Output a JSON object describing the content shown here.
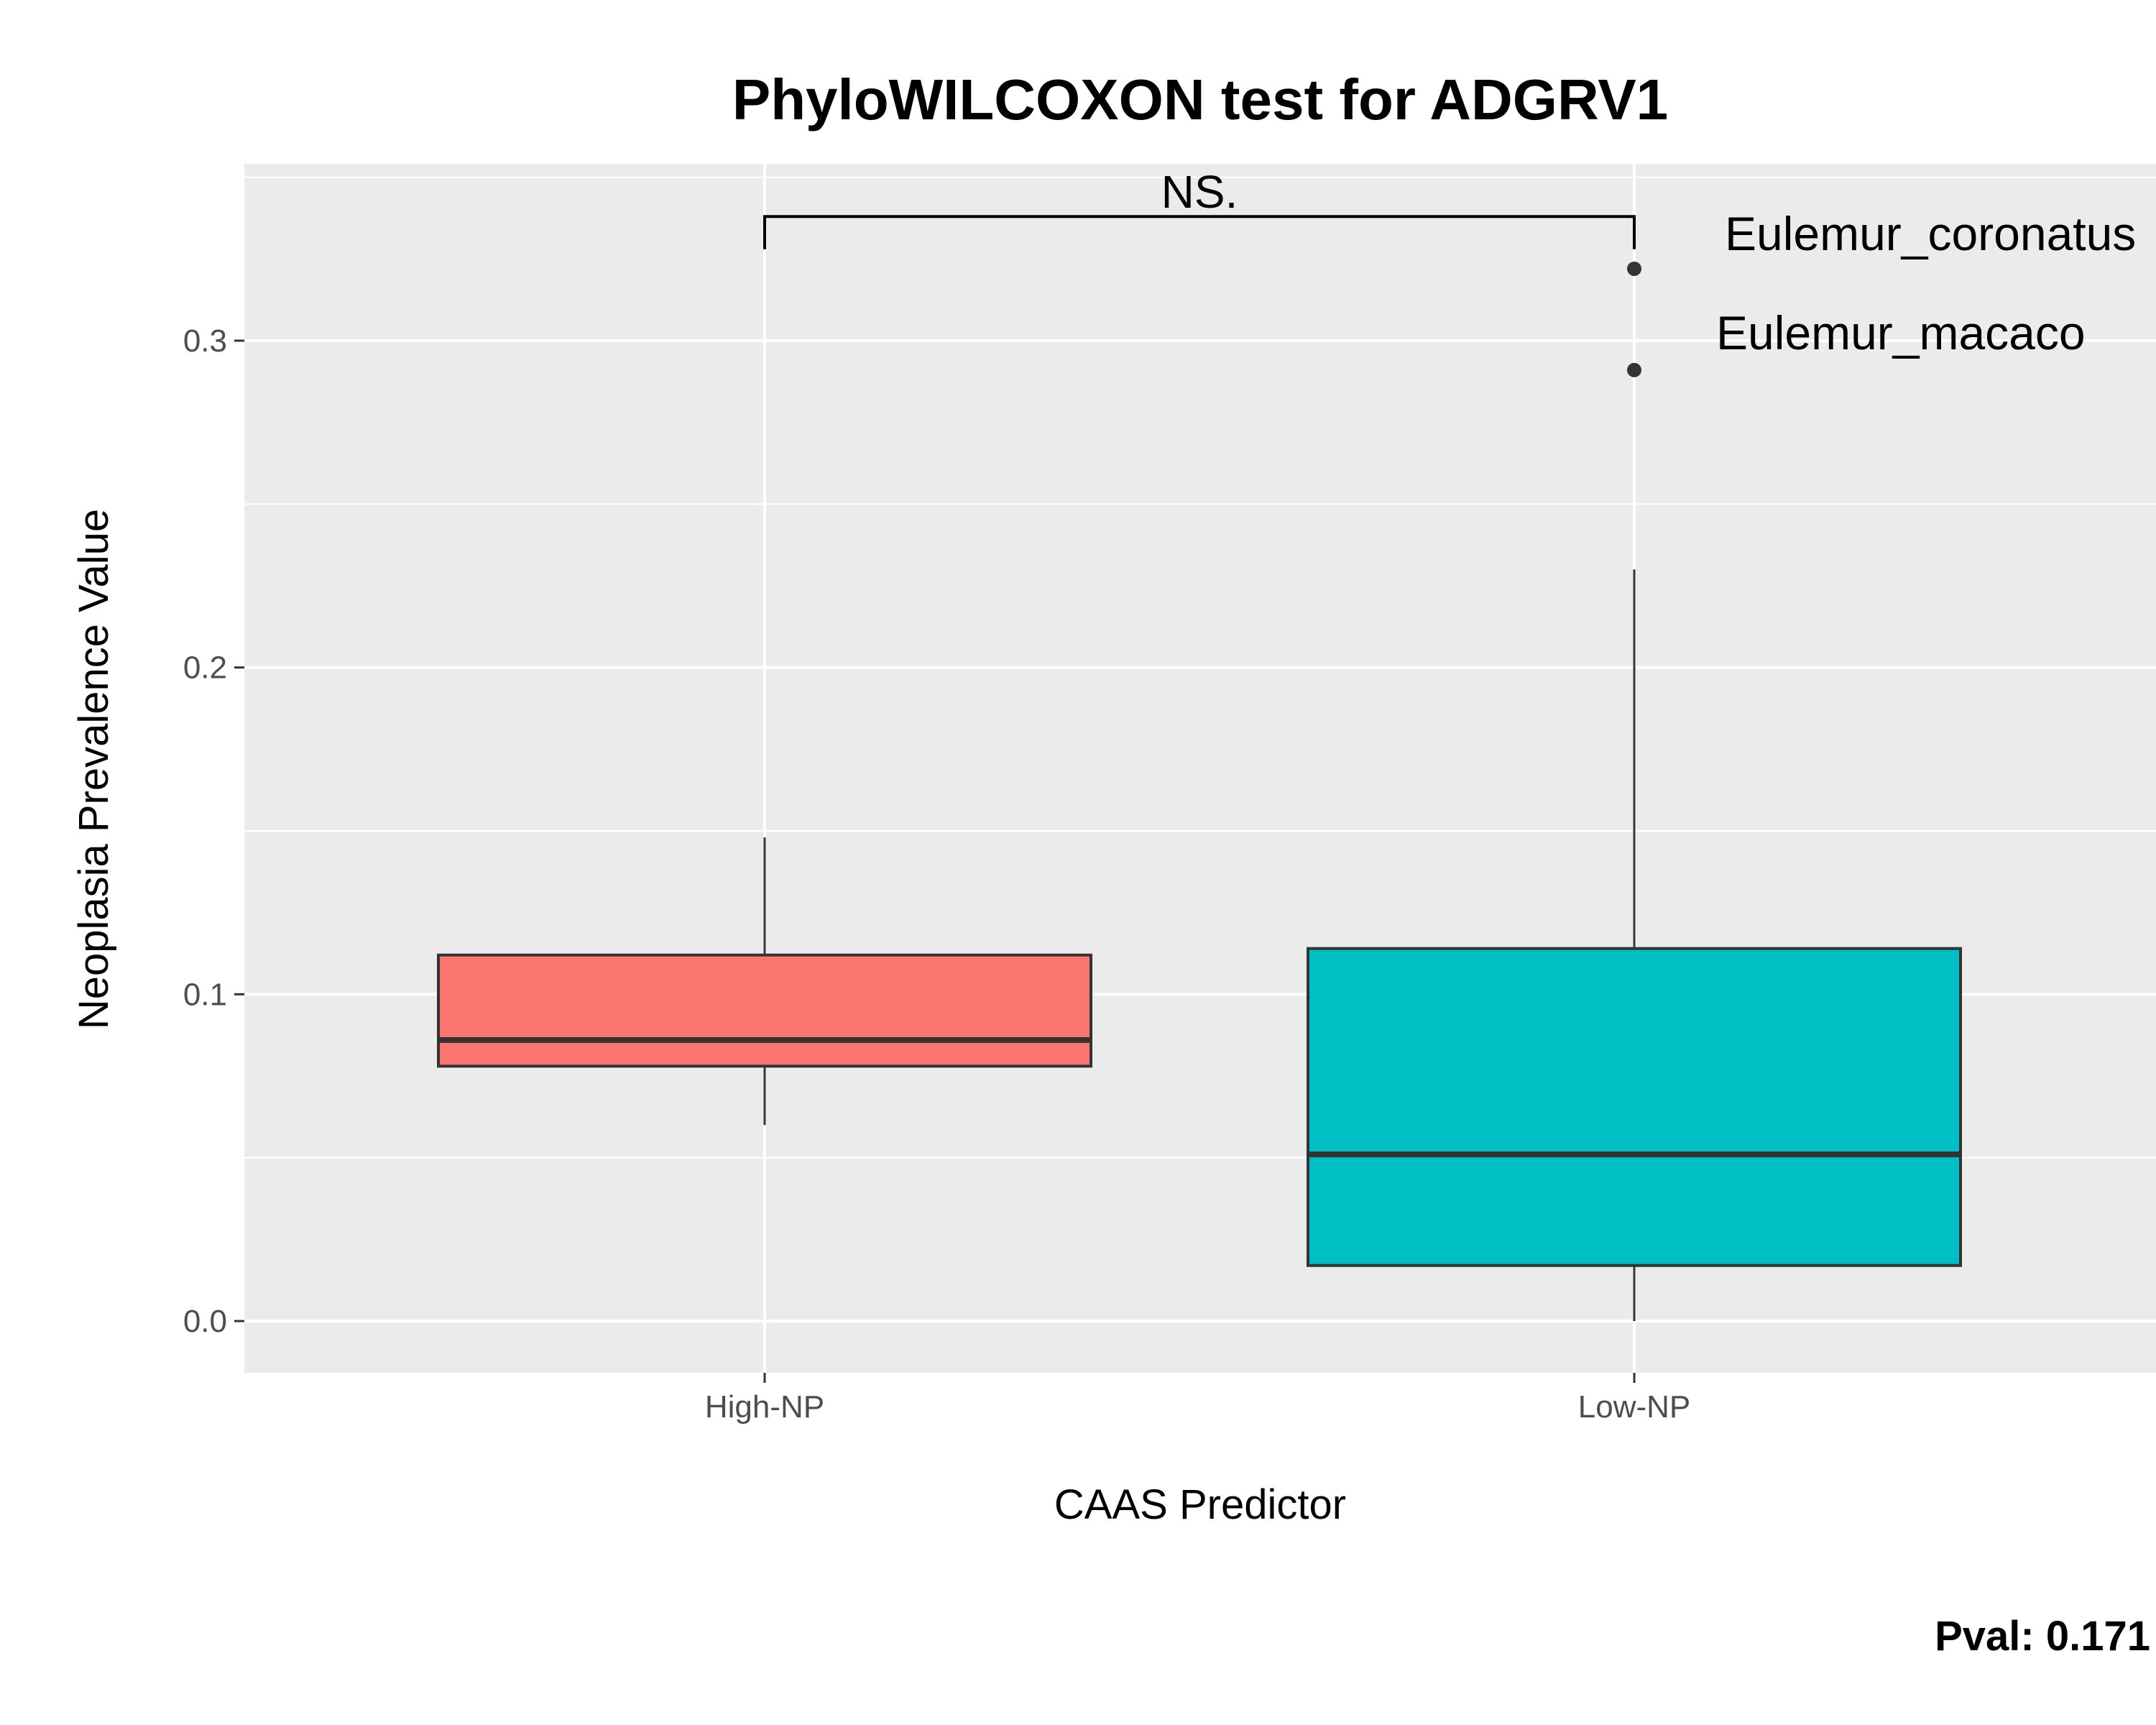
{
  "chart_data": {
    "type": "box",
    "title": "PhyloWILCOXON test for ADGRV1",
    "xlabel": "CAAS Predictor",
    "ylabel": "Neoplasia Prevalence Value",
    "categories": [
      "High-NP",
      "Low-NP"
    ],
    "ylim": [
      -0.017,
      0.355
    ],
    "yticks": [
      0.0,
      0.1,
      0.2,
      0.3
    ],
    "ytick_labels": [
      "0.0",
      "0.1",
      "0.2",
      "0.3"
    ],
    "grid": true,
    "legend": "none",
    "boxes": [
      {
        "category": "High-NP",
        "whisker_low": 0.06,
        "q1": 0.078,
        "median": 0.086,
        "q3": 0.112,
        "whisker_high": 0.148,
        "color": "#F8766D"
      },
      {
        "category": "Low-NP",
        "whisker_low": 0.0,
        "q1": 0.017,
        "median": 0.051,
        "q3": 0.114,
        "whisker_high": 0.23,
        "color": "#00BFC4"
      }
    ],
    "outliers": [
      {
        "category": "Low-NP",
        "value": 0.322,
        "label": "Eulemur_coronatus"
      },
      {
        "category": "Low-NP",
        "value": 0.291,
        "label": "Eulemur_macaco"
      }
    ],
    "significance": {
      "label": "NS.",
      "between": [
        "High-NP",
        "Low-NP"
      ],
      "bracket_value": 0.338,
      "tip_value": 0.328
    },
    "footnote": "Pval:  0.171"
  },
  "colors": {
    "panel_background": "#EBEBEB",
    "grid_line": "#FFFFFF",
    "box_outline": "#333333",
    "tick_text": "#4D4D4D"
  }
}
